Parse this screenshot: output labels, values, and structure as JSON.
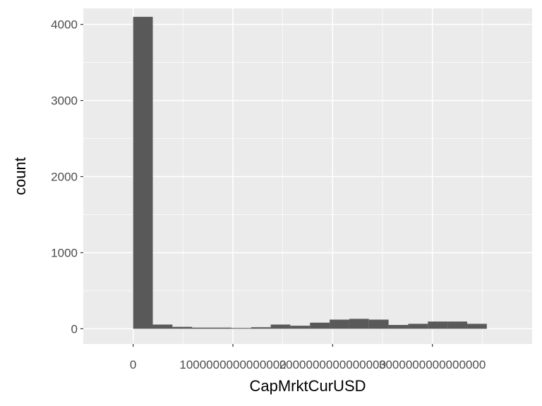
{
  "chart_data": {
    "type": "bar",
    "xlabel": "CapMrktCurUSD",
    "ylabel": "count",
    "xlim": [
      -500000000000000,
      4000000000000000
    ],
    "ylim": [
      -200,
      4210
    ],
    "x_ticks": [
      0,
      1000000000000000,
      2000000000000000,
      3000000000000000
    ],
    "x_tick_labels": [
      "0",
      "1000000000000000",
      "2000000000000000",
      "3000000000000000"
    ],
    "y_ticks": [
      0,
      1000,
      2000,
      3000,
      4000
    ],
    "y_tick_labels": [
      "0",
      "1000",
      "2000",
      "3000",
      "4000"
    ],
    "bin_width": 197000000000000,
    "bin_centers": [
      98500000000000,
      295500000000000,
      492500000000000,
      689500000000000,
      886500000000000,
      1083500000000000,
      1280500000000000,
      1477500000000000,
      1674500000000000,
      1871500000000000,
      2068500000000000,
      2265500000000000,
      2462500000000000,
      2659500000000000,
      2856500000000000,
      3053500000000000,
      3250500000000000,
      3447500000000000
    ],
    "values": [
      4100,
      55,
      25,
      15,
      15,
      10,
      20,
      55,
      40,
      80,
      120,
      130,
      120,
      50,
      65,
      95,
      95,
      65
    ],
    "grid": true,
    "panel_color": "#ebebeb",
    "bar_color": "#595959",
    "grid_color": "#ffffff"
  }
}
